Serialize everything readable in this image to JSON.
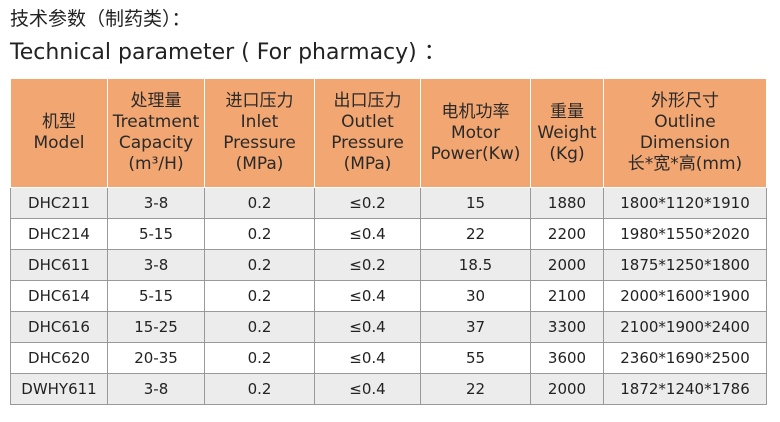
{
  "header": {
    "title_cn": "技术参数（制药类）：",
    "title_en": "Technical parameter ( For pharmacy) ："
  },
  "table": {
    "columns": [
      [
        "机型",
        "Model"
      ],
      [
        "处理量",
        "Treatment",
        "Capacity",
        "(m³/H)"
      ],
      [
        "进口压力",
        "Inlet",
        "Pressure",
        "(MPa)"
      ],
      [
        "出口压力",
        "Outlet",
        "Pressure",
        "(MPa)"
      ],
      [
        "电机功率",
        "Motor",
        "Power(Kw)"
      ],
      [
        "重量",
        "Weight",
        "(Kg)"
      ],
      [
        "外形尺寸",
        "Outline",
        "Dimension",
        "长*宽*高(mm)"
      ]
    ],
    "rows": [
      [
        "DHC211",
        "3-8",
        "0.2",
        "≤0.2",
        "15",
        "1880",
        "1800*1120*1910"
      ],
      [
        "DHC214",
        "5-15",
        "0.2",
        "≤0.4",
        "22",
        "2200",
        "1980*1550*2020"
      ],
      [
        "DHC611",
        "3-8",
        "0.2",
        "≤0.2",
        "18.5",
        "2000",
        "1875*1250*1800"
      ],
      [
        "DHC614",
        "5-15",
        "0.2",
        "≤0.4",
        "30",
        "2100",
        "2000*1600*1900"
      ],
      [
        "DHC616",
        "15-25",
        "0.2",
        "≤0.4",
        "37",
        "3300",
        "2100*1900*2400"
      ],
      [
        "DHC620",
        "20-35",
        "0.2",
        "≤0.4",
        "55",
        "3600",
        "2360*1690*2500"
      ],
      [
        "DWHY611",
        "3-8",
        "0.2",
        "≤0.4",
        "22",
        "2000",
        "1872*1240*1786"
      ]
    ]
  }
}
